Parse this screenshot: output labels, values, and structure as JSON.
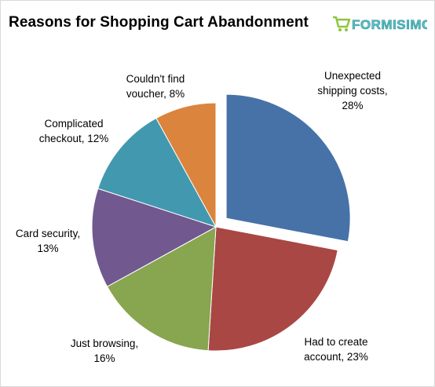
{
  "logo_text": "FORMISIMO",
  "chart_data": {
    "type": "pie",
    "title": "Reasons for Shopping Cart Abandonment",
    "slices": [
      {
        "label_line1": "Unexpected",
        "label_line2": "shipping costs,",
        "label_line3": "28%",
        "value": 28,
        "color": "#4672a8",
        "exploded": true
      },
      {
        "label_line1": "Had to create",
        "label_line2": "account, 23%",
        "value": 23,
        "color": "#a94744"
      },
      {
        "label_line1": "Just browsing,",
        "label_line2": "16%",
        "value": 16,
        "color": "#88a54f"
      },
      {
        "label_line1": "Card security,",
        "label_line2": "13%",
        "value": 13,
        "color": "#71588f"
      },
      {
        "label_line1": "Complicated",
        "label_line2": "checkout, 12%",
        "value": 12,
        "color": "#4298af"
      },
      {
        "label_line1": "Couldn't find",
        "label_line2": "voucher, 8%",
        "value": 8,
        "color": "#db843d"
      }
    ],
    "logo_colors": {
      "primary": "#5bc0c6",
      "accent": "#8cc63f"
    }
  }
}
